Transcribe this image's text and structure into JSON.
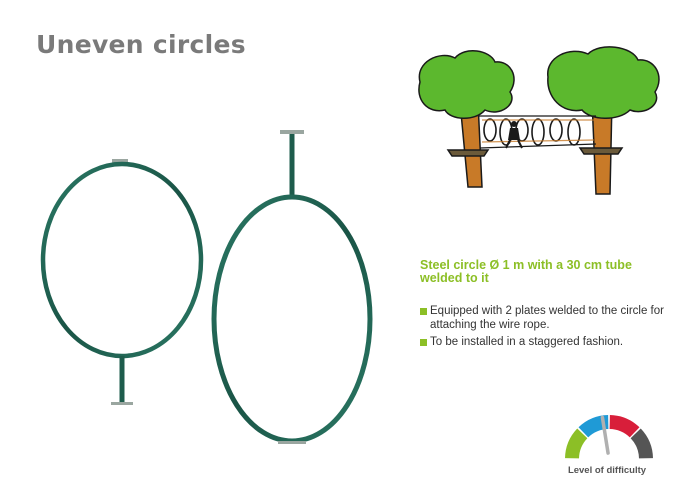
{
  "title": "Uneven circles",
  "subtitle": "Steel circle Ø 1 m with a 30 cm tube welded to it",
  "bullets": [
    "Equipped with 2 plates welded to the circle for attaching the wire rope.",
    "To be installed in a staggered fashion."
  ],
  "difficulty": {
    "label": "Level of difficulty",
    "level": 0.45,
    "segment_colors": [
      "#8cbf26",
      "#1f9ad6",
      "#d81e3a",
      "#555555"
    ]
  },
  "colors": {
    "ring": "#1f5c4c",
    "accent": "#8cbf26",
    "title": "#7a7a7a",
    "foliage": "#5cb82e",
    "trunk": "#c87a28"
  }
}
